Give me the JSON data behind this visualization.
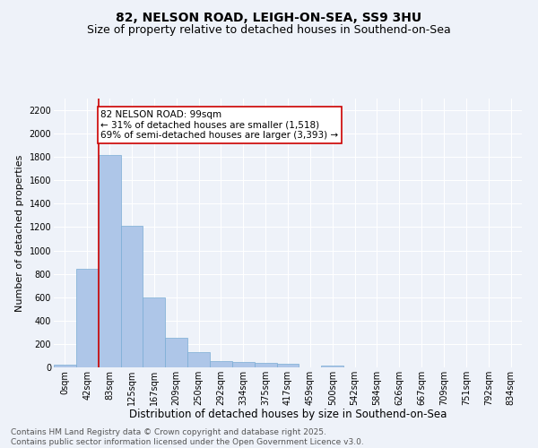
{
  "title1": "82, NELSON ROAD, LEIGH-ON-SEA, SS9 3HU",
  "title2": "Size of property relative to detached houses in Southend-on-Sea",
  "xlabel": "Distribution of detached houses by size in Southend-on-Sea",
  "ylabel": "Number of detached properties",
  "bin_labels": [
    "0sqm",
    "42sqm",
    "83sqm",
    "125sqm",
    "167sqm",
    "209sqm",
    "250sqm",
    "292sqm",
    "334sqm",
    "375sqm",
    "417sqm",
    "459sqm",
    "500sqm",
    "542sqm",
    "584sqm",
    "626sqm",
    "667sqm",
    "709sqm",
    "751sqm",
    "792sqm",
    "834sqm"
  ],
  "bar_heights": [
    25,
    845,
    1820,
    1210,
    595,
    255,
    130,
    52,
    45,
    35,
    28,
    0,
    15,
    0,
    0,
    0,
    0,
    0,
    0,
    0,
    0
  ],
  "bar_color": "#aec6e8",
  "bar_edge_color": "#7aadd4",
  "vline_color": "#cc0000",
  "annotation_text": "82 NELSON ROAD: 99sqm\n← 31% of detached houses are smaller (1,518)\n69% of semi-detached houses are larger (3,393) →",
  "annotation_box_color": "#ffffff",
  "annotation_box_edge": "#cc0000",
  "ylim": [
    0,
    2300
  ],
  "yticks": [
    0,
    200,
    400,
    600,
    800,
    1000,
    1200,
    1400,
    1600,
    1800,
    2000,
    2200
  ],
  "background_color": "#eef2f9",
  "footer_text": "Contains HM Land Registry data © Crown copyright and database right 2025.\nContains public sector information licensed under the Open Government Licence v3.0.",
  "title1_fontsize": 10,
  "title2_fontsize": 9,
  "xlabel_fontsize": 8.5,
  "ylabel_fontsize": 8,
  "tick_fontsize": 7,
  "annotation_fontsize": 7.5,
  "footer_fontsize": 6.5
}
